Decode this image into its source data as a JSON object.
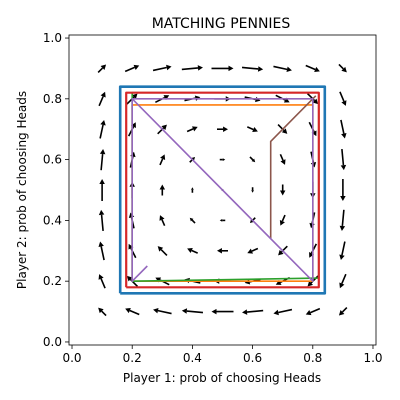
{
  "chart_data": {
    "type": "line",
    "title": "MATCHING PENNIES",
    "xlabel": "Player 1: prob of choosing Heads",
    "ylabel": "Player 2: prob of choosing Heads",
    "xlim": [
      -0.01,
      1.01
    ],
    "ylim": [
      -0.01,
      1.01
    ],
    "xticks": [
      0.0,
      0.2,
      0.4,
      0.6,
      0.8,
      1.0
    ],
    "yticks": [
      0.0,
      0.2,
      0.4,
      0.6,
      0.8,
      1.0
    ],
    "xtick_labels": [
      "0.0",
      "0.2",
      "0.4",
      "0.6",
      "0.8",
      "1.0"
    ],
    "ytick_labels": [
      "0.0",
      "0.2",
      "0.4",
      "0.6",
      "0.8",
      "1.0"
    ],
    "grid": false,
    "series": [
      {
        "color": "#1f77b4",
        "points": [
          [
            0.16,
            0.16
          ],
          [
            0.84,
            0.16
          ],
          [
            0.84,
            0.84
          ],
          [
            0.16,
            0.84
          ],
          [
            0.16,
            0.16
          ]
        ]
      },
      {
        "color": "#ff7f0e",
        "points": [
          [
            0.2,
            0.2
          ],
          [
            0.8,
            0.2
          ],
          [
            0.8,
            0.78
          ],
          [
            0.2,
            0.78
          ],
          [
            0.2,
            0.2
          ]
        ]
      },
      {
        "color": "#2ca02c",
        "points": [
          [
            0.2,
            0.2
          ],
          [
            0.82,
            0.21
          ],
          [
            0.82,
            0.82
          ],
          [
            0.2,
            0.82
          ],
          [
            0.2,
            0.2
          ]
        ]
      },
      {
        "color": "#d62728",
        "points": [
          [
            0.18,
            0.18
          ],
          [
            0.82,
            0.18
          ],
          [
            0.82,
            0.82
          ],
          [
            0.18,
            0.82
          ],
          [
            0.18,
            0.18
          ]
        ]
      },
      {
        "color": "#8c564b",
        "points": [
          [
            0.66,
            0.34
          ],
          [
            0.66,
            0.66
          ],
          [
            0.74,
            0.74
          ],
          [
            0.81,
            0.81
          ]
        ]
      },
      {
        "color": "#9467bd",
        "points": [
          [
            0.25,
            0.25
          ],
          [
            0.2,
            0.2
          ],
          [
            0.2,
            0.8
          ],
          [
            0.8,
            0.2
          ],
          [
            0.8,
            0.8
          ],
          [
            0.2,
            0.8
          ]
        ]
      }
    ],
    "vector_field": {
      "grid": [
        0.1,
        0.2,
        0.3,
        0.4,
        0.5,
        0.6,
        0.7,
        0.8,
        0.9
      ],
      "color": "#000000"
    }
  }
}
